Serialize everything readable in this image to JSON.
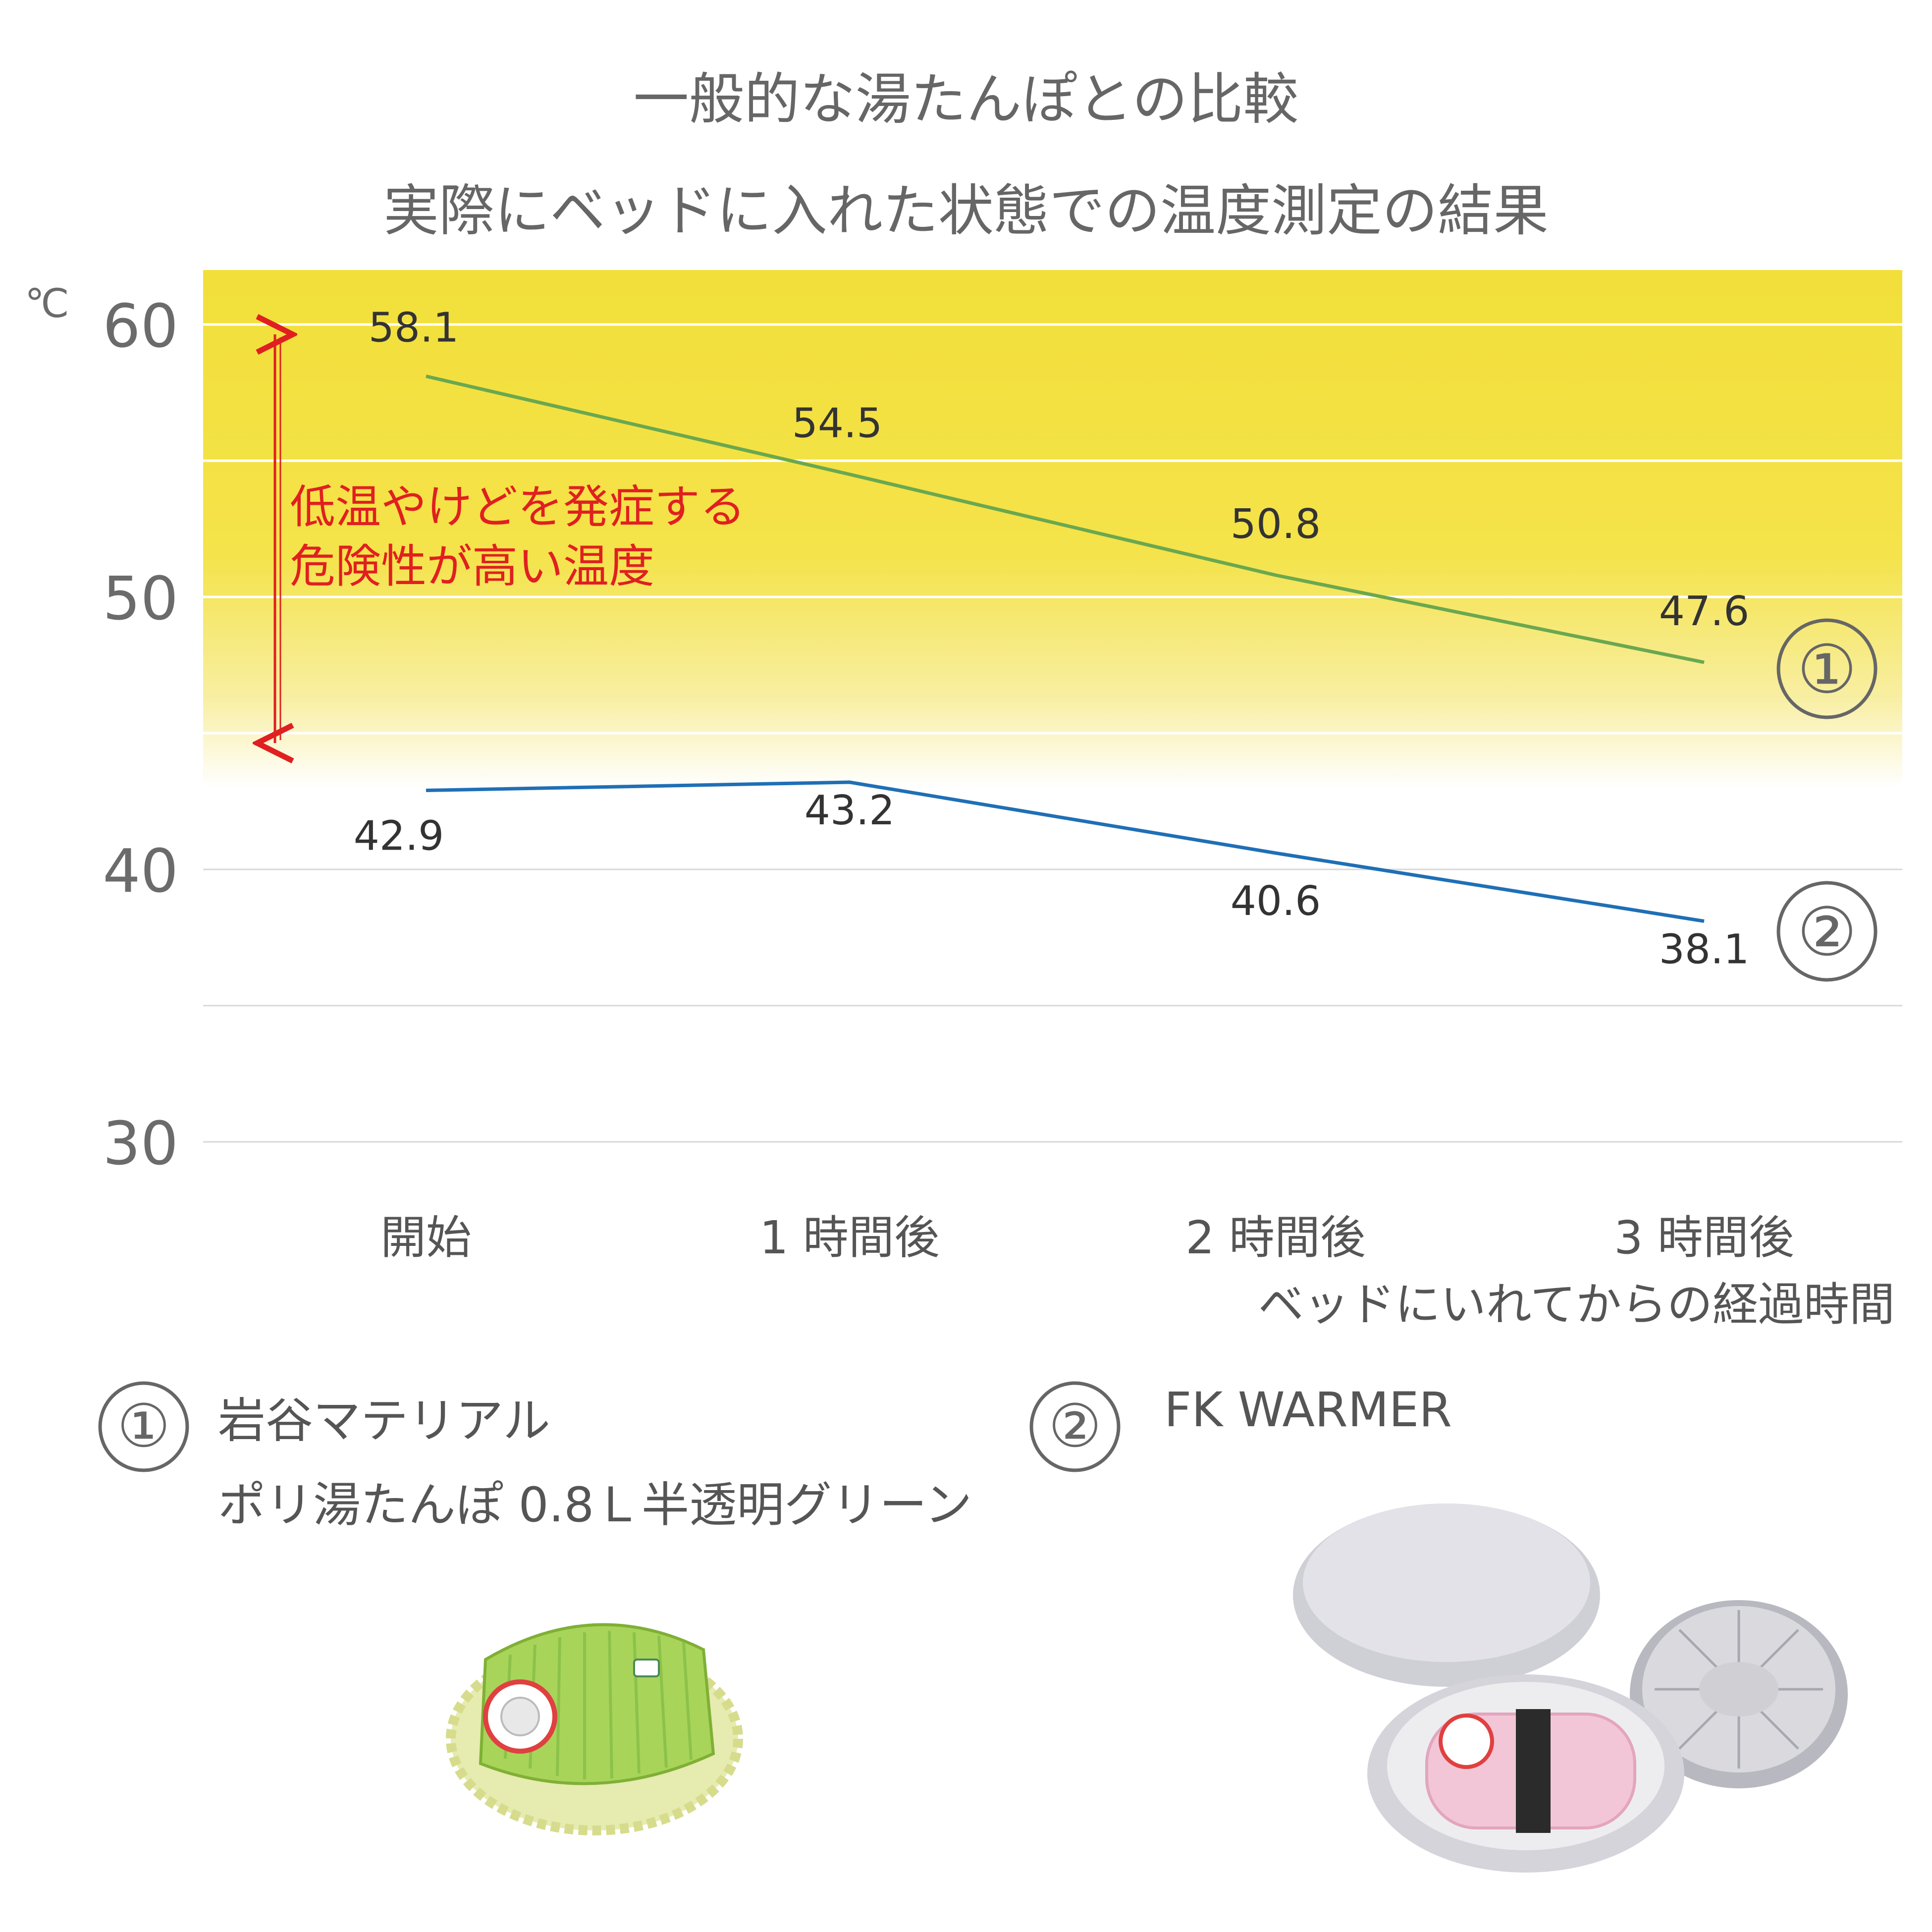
{
  "title": "一般的な湯たんぽとの比較",
  "subtitle": "実際にベッドに入れた状態での温度測定の結果",
  "chart_data": {
    "type": "line",
    "unit": "℃",
    "ylim": [
      30,
      62
    ],
    "yticks": [
      "30",
      "40",
      "50",
      "60"
    ],
    "categories": [
      "開始",
      "1 時間後",
      "2 時間後",
      "3 時間後"
    ],
    "xlabel": "ベッドにいれてからの経過時間",
    "series": [
      {
        "name": "①",
        "values": [
          58.1,
          54.5,
          50.8,
          47.6
        ],
        "labels": [
          "58.1",
          "54.5",
          "50.8",
          "47.6"
        ],
        "color": "#6aa84f"
      },
      {
        "name": "②",
        "values": [
          42.9,
          43.2,
          40.6,
          38.1
        ],
        "labels": [
          "42.9",
          "43.2",
          "40.6",
          "38.1"
        ],
        "color": "#1f6fb5"
      }
    ],
    "danger_zone": {
      "from": 45,
      "to": 62,
      "color": "#f2e03c"
    },
    "annotation": {
      "line1": "低温やけどを発症する",
      "line2": "危険性が高い温度",
      "color": "#e02020",
      "from": 45,
      "to": 60
    },
    "grid": true
  },
  "legend": {
    "item1": {
      "marker": "①",
      "line1": "岩谷マテリアル",
      "line2": "ポリ湯たんぽ 0.8Ｌ半透明グリーン"
    },
    "item2": {
      "marker": "②",
      "line1": "FK WARMER"
    }
  },
  "colors": {
    "accent_red": "#e02020",
    "zone_yellow": "#f2e03c",
    "green": "#6aa84f",
    "blue": "#1f6fb5"
  }
}
